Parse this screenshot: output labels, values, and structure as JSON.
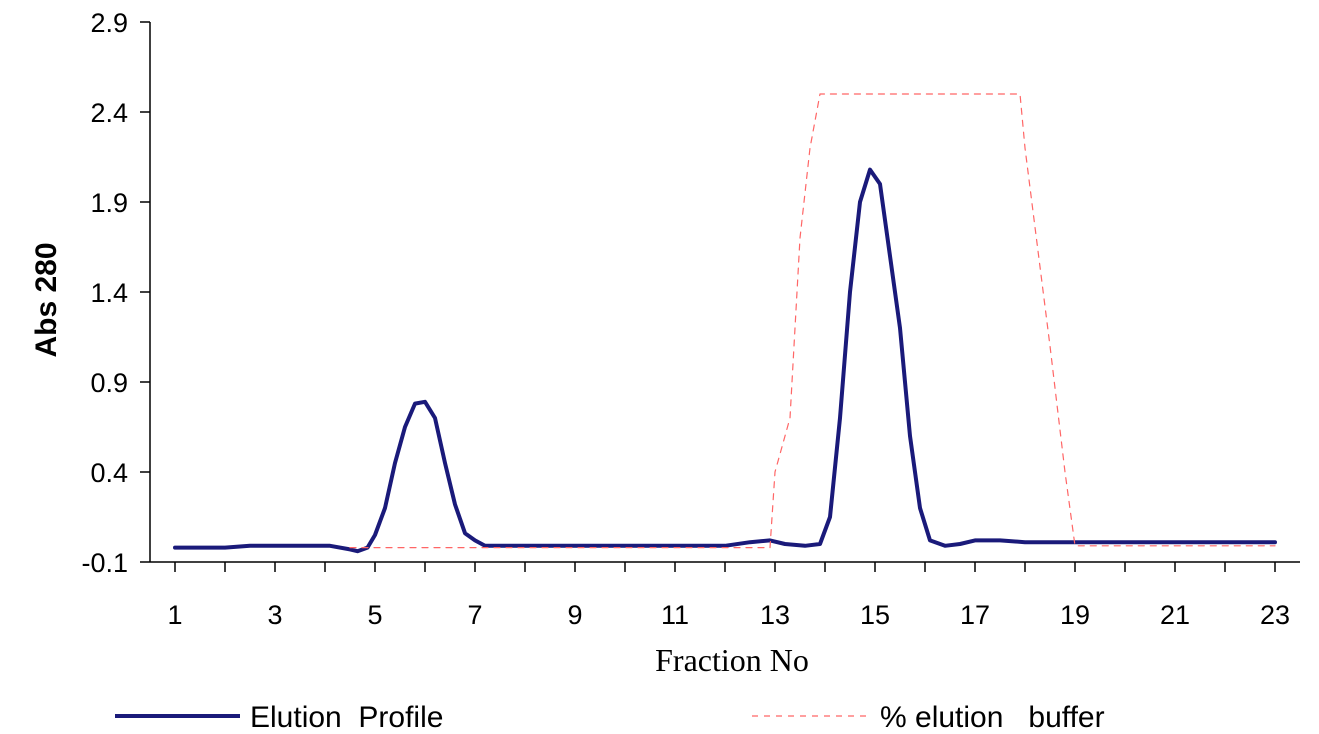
{
  "chart_data": {
    "type": "line",
    "xlabel": "Fraction No",
    "ylabel": "Abs 280",
    "x_ticks": [
      1,
      3,
      5,
      7,
      9,
      11,
      13,
      15,
      17,
      19,
      21,
      23
    ],
    "y_ticks": [
      -0.1,
      0.4,
      0.9,
      1.4,
      1.9,
      2.4,
      2.9
    ],
    "y_tick_labels": [
      "-0.1",
      "0.4",
      "0.9",
      "1.4",
      "1.9",
      "2.4",
      "2.9"
    ],
    "xlim": [
      0.5,
      23.5
    ],
    "ylim": [
      -0.1,
      2.9
    ],
    "legend_position": "bottom",
    "series": [
      {
        "name": "Elution  Profile",
        "color": "#1a1a7a",
        "style": "solid",
        "points": [
          [
            1.0,
            -0.02
          ],
          [
            2.0,
            -0.02
          ],
          [
            2.5,
            -0.01
          ],
          [
            3.0,
            -0.01
          ],
          [
            3.5,
            -0.01
          ],
          [
            4.1,
            -0.01
          ],
          [
            4.5,
            -0.03
          ],
          [
            4.65,
            -0.04
          ],
          [
            4.85,
            -0.02
          ],
          [
            5.0,
            0.05
          ],
          [
            5.2,
            0.2
          ],
          [
            5.4,
            0.45
          ],
          [
            5.6,
            0.65
          ],
          [
            5.8,
            0.78
          ],
          [
            6.0,
            0.79
          ],
          [
            6.2,
            0.7
          ],
          [
            6.4,
            0.45
          ],
          [
            6.6,
            0.22
          ],
          [
            6.8,
            0.06
          ],
          [
            7.0,
            0.02
          ],
          [
            7.2,
            -0.01
          ],
          [
            8.0,
            -0.01
          ],
          [
            9.0,
            -0.01
          ],
          [
            10.0,
            -0.01
          ],
          [
            11.0,
            -0.01
          ],
          [
            12.0,
            -0.01
          ],
          [
            12.5,
            0.01
          ],
          [
            12.9,
            0.02
          ],
          [
            13.2,
            0.0
          ],
          [
            13.6,
            -0.01
          ],
          [
            13.9,
            0.0
          ],
          [
            14.1,
            0.15
          ],
          [
            14.3,
            0.7
          ],
          [
            14.5,
            1.4
          ],
          [
            14.7,
            1.9
          ],
          [
            14.9,
            2.08
          ],
          [
            15.1,
            2.0
          ],
          [
            15.3,
            1.6
          ],
          [
            15.5,
            1.2
          ],
          [
            15.7,
            0.6
          ],
          [
            15.9,
            0.2
          ],
          [
            16.1,
            0.02
          ],
          [
            16.4,
            -0.01
          ],
          [
            16.7,
            0.0
          ],
          [
            17.0,
            0.02
          ],
          [
            17.5,
            0.02
          ],
          [
            18.0,
            0.01
          ],
          [
            19.0,
            0.01
          ],
          [
            20.0,
            0.01
          ],
          [
            21.0,
            0.01
          ],
          [
            22.0,
            0.01
          ],
          [
            23.0,
            0.01
          ]
        ]
      },
      {
        "name": "% elution   buffer",
        "color": "#ff6666",
        "style": "dashed",
        "points": [
          [
            4.5,
            -0.02
          ],
          [
            12.9,
            -0.02
          ],
          [
            13.0,
            0.4
          ],
          [
            13.3,
            0.7
          ],
          [
            13.5,
            1.7
          ],
          [
            13.7,
            2.2
          ],
          [
            13.9,
            2.5
          ],
          [
            17.9,
            2.5
          ],
          [
            18.0,
            2.2
          ],
          [
            18.5,
            1.1
          ],
          [
            18.8,
            0.4
          ],
          [
            19.0,
            -0.01
          ],
          [
            23.0,
            -0.01
          ]
        ]
      }
    ]
  }
}
